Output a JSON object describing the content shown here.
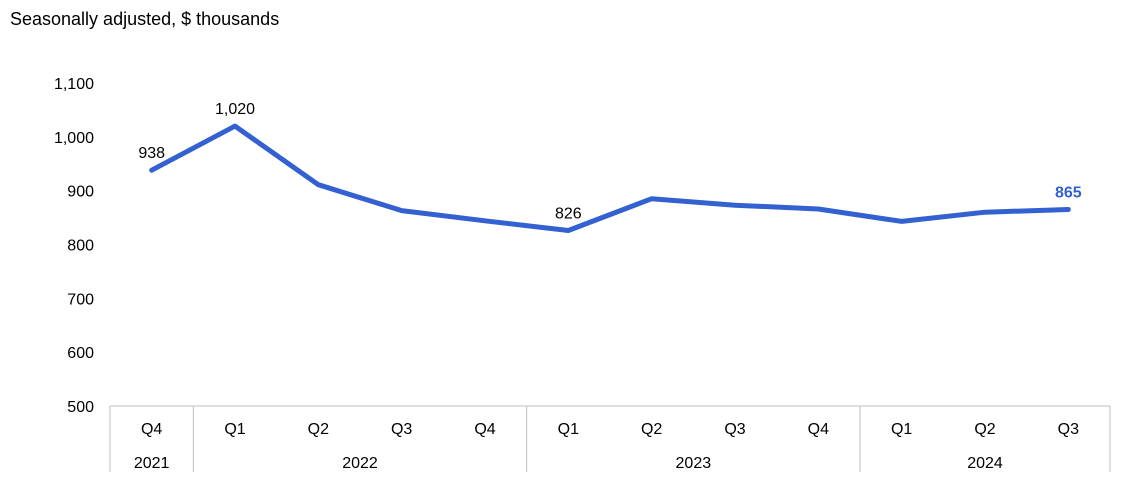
{
  "chart_data": {
    "type": "line",
    "subtitle": "Seasonally adjusted, $ thousands",
    "categories": [
      "Q4",
      "Q1",
      "Q2",
      "Q3",
      "Q4",
      "Q1",
      "Q2",
      "Q3",
      "Q4",
      "Q1",
      "Q2",
      "Q3"
    ],
    "years": [
      {
        "label": "2021",
        "span": 1
      },
      {
        "label": "2022",
        "span": 4
      },
      {
        "label": "2023",
        "span": 4
      },
      {
        "label": "2024",
        "span": 3
      }
    ],
    "series": [
      {
        "values": [
          938,
          1020,
          911,
          863,
          844,
          826,
          885,
          873,
          866,
          843,
          860,
          865
        ],
        "color": "#3461d1"
      }
    ],
    "data_labels": [
      {
        "index": 0,
        "text": "938"
      },
      {
        "index": 1,
        "text": "1,020"
      },
      {
        "index": 5,
        "text": "826"
      },
      {
        "index": 11,
        "text": "865",
        "accent": true
      }
    ],
    "ylim": [
      500,
      1100
    ],
    "yticks": [
      {
        "value": 500,
        "label": "500"
      },
      {
        "value": 600,
        "label": "600"
      },
      {
        "value": 700,
        "label": "700"
      },
      {
        "value": 800,
        "label": "800"
      },
      {
        "value": 900,
        "label": "900"
      },
      {
        "value": 1000,
        "label": "1,000"
      },
      {
        "value": 1100,
        "label": "1,100"
      }
    ],
    "grid": false,
    "legend": "none"
  }
}
